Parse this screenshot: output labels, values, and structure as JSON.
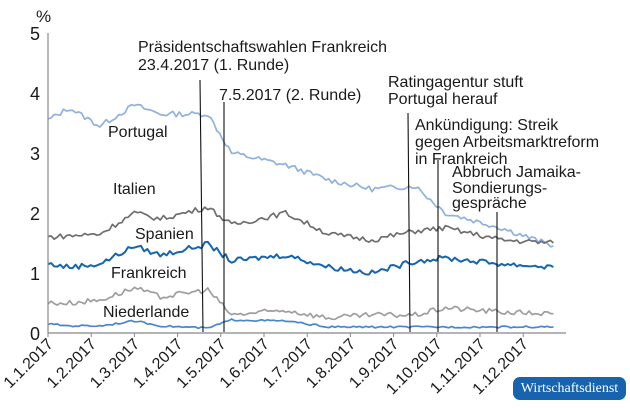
{
  "chart_data": {
    "type": "line",
    "title": "",
    "xlabel": "",
    "ylabel": "%",
    "ylim": [
      0,
      5
    ],
    "yticks": [
      0,
      1,
      2,
      3,
      4,
      5
    ],
    "xticks": [
      "1.1.2017",
      "1.2.2017",
      "1.3.2017",
      "1.4.2017",
      "1.5.2017",
      "1.6.2017",
      "1.7.2017",
      "1.8.2017",
      "1.9.2017",
      "1.10.2017",
      "1.11.2017",
      "1.12.2017"
    ],
    "x_months": [
      0,
      1,
      2,
      3,
      4,
      5,
      6,
      7,
      8,
      9,
      10,
      11,
      11.75
    ],
    "grid": false,
    "series": [
      {
        "name": "Portugal",
        "color": "#8fb1e0",
        "values": [
          3.55,
          3.75,
          3.45,
          3.8,
          3.65,
          3.65,
          3.0,
          2.8,
          2.55,
          2.4,
          2.45,
          2.0,
          1.75,
          1.45
        ]
      },
      {
        "name": "Italien",
        "color": "#6e6e6e",
        "values": [
          1.6,
          1.62,
          1.65,
          2.0,
          1.9,
          2.1,
          1.8,
          2.0,
          1.65,
          1.55,
          1.7,
          1.75,
          1.55,
          1.5
        ]
      },
      {
        "name": "Spanien",
        "color": "#1565b0",
        "values": [
          1.15,
          1.1,
          1.15,
          1.45,
          1.3,
          1.48,
          1.2,
          1.3,
          1.1,
          1.0,
          1.2,
          1.25,
          1.15,
          1.1
        ]
      },
      {
        "name": "Frankreich",
        "color": "#9e9e9e",
        "values": [
          0.5,
          0.5,
          0.55,
          0.75,
          0.6,
          0.72,
          0.3,
          0.38,
          0.25,
          0.3,
          0.3,
          0.42,
          0.35,
          0.32
        ]
      },
      {
        "name": "Niederlande",
        "color": "#4a86cc",
        "values": [
          0.15,
          0.12,
          0.12,
          0.2,
          0.12,
          0.08,
          0.22,
          0.2,
          0.1,
          0.1,
          0.1,
          0.1,
          0.1,
          0.1
        ]
      }
    ],
    "series_x": [
      0,
      0.5,
      1.2,
      2.0,
      2.6,
      3.7,
      4.25,
      5.5,
      6.5,
      7.5,
      8.5,
      9.2,
      10.5,
      11.7
    ],
    "annotations": [
      {
        "text": "Präsidentschaftswahlen Frankreich 23.4.2017 (1. Runde)",
        "x": 3.73
      },
      {
        "text": "7.5.2017 (2. Runde)",
        "x": 4.2
      },
      {
        "text": "Ratingagentur stuft Portugal herauf",
        "x": 8.55
      },
      {
        "text": "Ankündigung: Streik gegen Arbeitsmarktreform in Frankreich",
        "x": 9.2
      },
      {
        "text": "Abbruch Jamaika-Sondierungsgespräche",
        "x": 10.6
      }
    ],
    "legend_position": "inline labels"
  },
  "axis": {
    "unit": "%",
    "yticks": [
      "0",
      "1",
      "2",
      "3",
      "4",
      "5"
    ]
  },
  "labels": {
    "portugal": "Portugal",
    "italien": "Italien",
    "spanien": "Spanien",
    "frankreich": "Frankreich",
    "niederlande": "Niederlande"
  },
  "annotations": {
    "a1_line1": "Präsidentschaftswahlen Frankreich",
    "a1_line2": "23.4.2017 (1. Runde)",
    "a2": "7.5.2017 (2. Runde)",
    "a3_line1": "Ratingagentur stuft",
    "a3_line2": "Portugal herauf",
    "a4_line1": "Ankündigung: Streik",
    "a4_line2": "gegen Arbeitsmarktreform",
    "a4_line3": "in Frankreich",
    "a5_line1": "Abbruch Jamaika-",
    "a5_line2": "Sondierungs-",
    "a5_line3": "gespräche"
  },
  "source_logo": "Wirtschaftsdienst"
}
